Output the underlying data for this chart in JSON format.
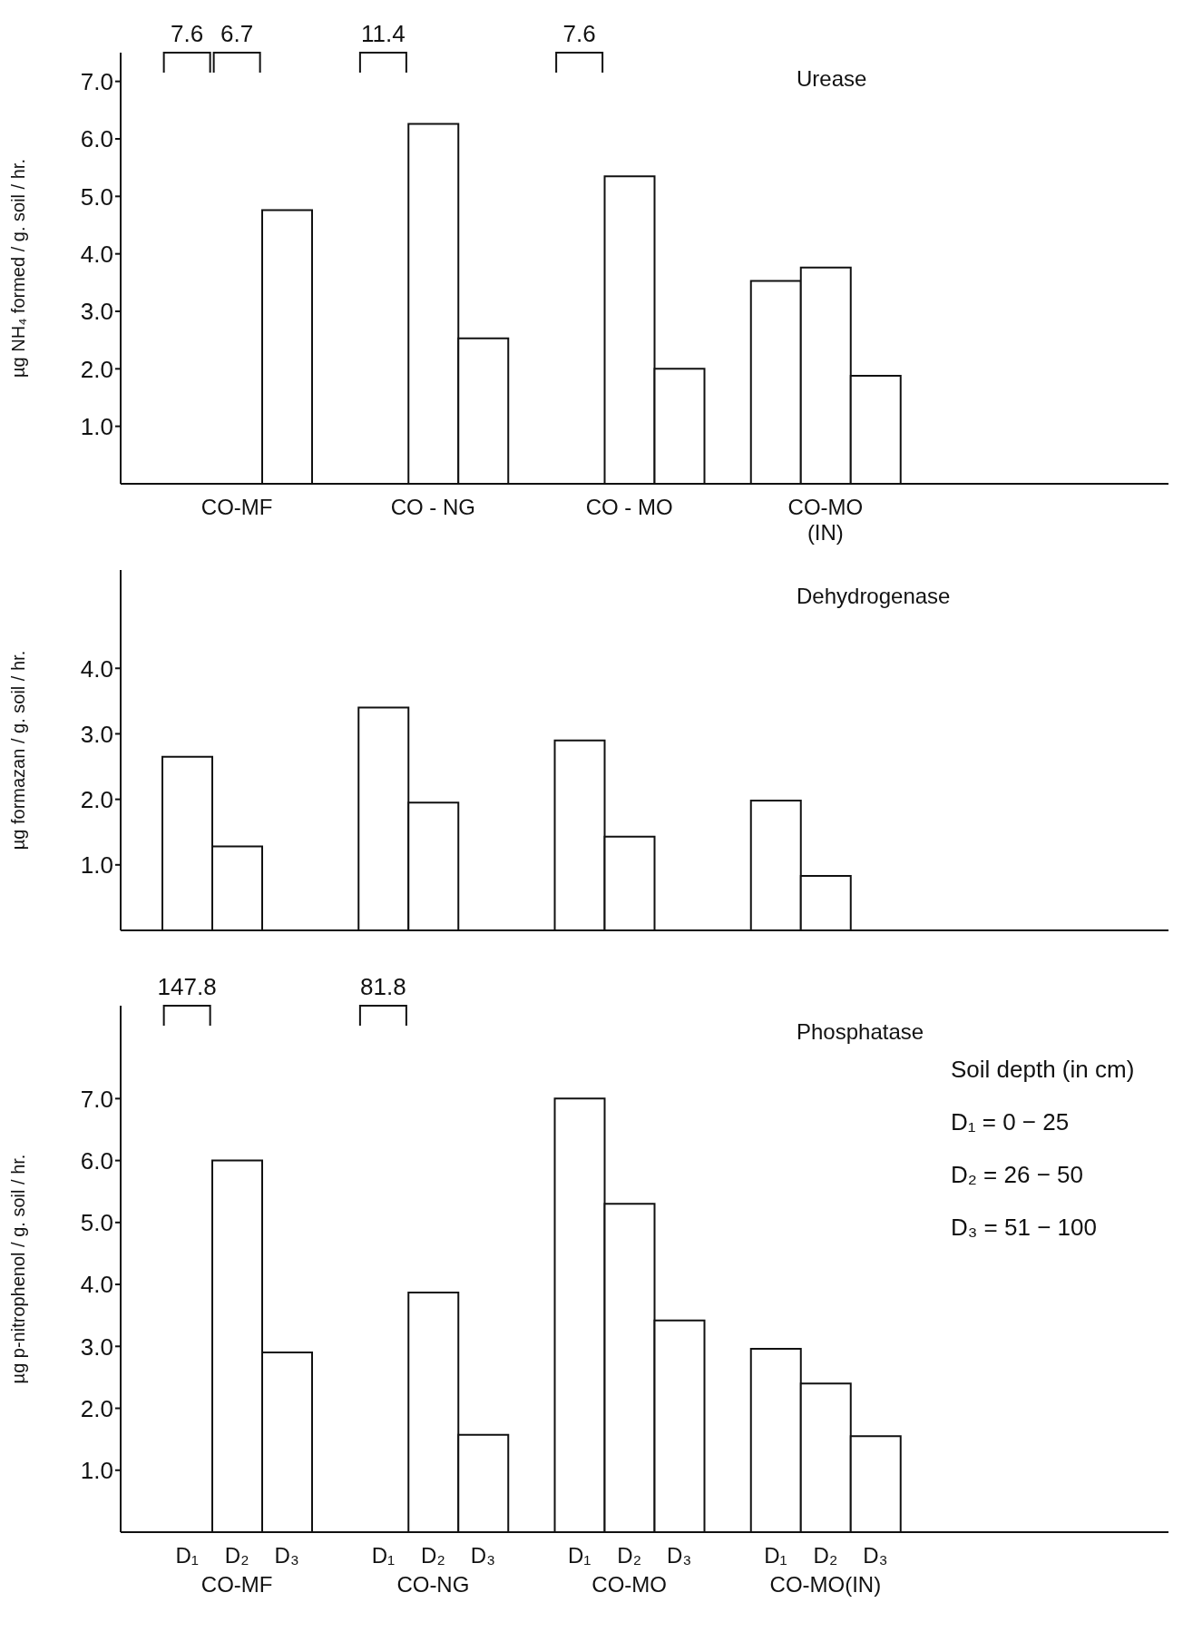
{
  "chart_data": [
    {
      "type": "bar",
      "title": "Urease",
      "ylabel": "µg NH₄ formed / g. soil / hr.",
      "categories": [
        "CO-MF",
        "CO - NG",
        "CO - MO",
        "CO-MO (IN)"
      ],
      "series": [
        {
          "color": "#ffffff",
          "values": [
            null,
            null,
            null,
            3.53
          ]
        },
        {
          "color": "#ffffff",
          "values": [
            null,
            6.26,
            5.35,
            3.76
          ]
        },
        {
          "color": "#ffffff",
          "values": [
            4.76,
            2.53,
            2.0,
            1.88
          ]
        }
      ],
      "ylim": [
        0,
        7.5
      ],
      "yticks": [
        {
          "value": 1,
          "label": "1.0"
        },
        {
          "value": 2,
          "label": "2.0"
        },
        {
          "value": 3,
          "label": "3.0"
        },
        {
          "value": 4,
          "label": "4.0"
        },
        {
          "value": 5,
          "label": "5.0"
        },
        {
          "value": 6,
          "label": "6.0"
        },
        {
          "value": 7,
          "label": "7.0"
        }
      ],
      "annotations": [
        "7.6",
        "6.7",
        "11.4",
        "7.6"
      ]
    },
    {
      "type": "bar",
      "title": "Dehydrogenase",
      "ylabel": "µg formazan / g. soil / hr.",
      "categories": [
        null,
        null,
        null,
        null
      ],
      "series": [
        {
          "color": "#ffffff",
          "values": [
            2.65,
            3.4,
            2.9,
            1.98
          ]
        },
        {
          "color": "#ffffff",
          "values": [
            1.28,
            1.95,
            1.43,
            0.83
          ]
        },
        {
          "color": "#ffffff",
          "values": [
            null,
            null,
            null,
            null
          ]
        }
      ],
      "ylim": [
        0,
        5.5
      ],
      "yticks": [
        {
          "value": 1,
          "label": "1.0"
        },
        {
          "value": 2,
          "label": "2.0"
        },
        {
          "value": 3,
          "label": "3.0"
        },
        {
          "value": 4,
          "label": "4.0"
        }
      ]
    },
    {
      "type": "bar",
      "title": "Phosphatase",
      "ylabel": "µg p-nitrophenol / g. soil / hr.",
      "categories": [
        "CO-MF",
        "CO-NG",
        "CO-MO",
        "CO-MO(IN)"
      ],
      "series": [
        {
          "name": "D₁",
          "color": "#ffffff",
          "values": [
            null,
            null,
            7.0,
            2.96
          ]
        },
        {
          "name": "D₂",
          "color": "#ffffff",
          "values": [
            6.0,
            3.87,
            5.3,
            2.4
          ]
        },
        {
          "name": "D₃",
          "color": "#ffffff",
          "values": [
            2.9,
            1.57,
            3.42,
            1.55
          ]
        }
      ],
      "ylim": [
        0,
        8.5
      ],
      "yticks": [
        {
          "value": 1,
          "label": "1.0"
        },
        {
          "value": 2,
          "label": "2.0"
        },
        {
          "value": 3,
          "label": "3.0"
        },
        {
          "value": 4,
          "label": "4.0"
        },
        {
          "value": 5,
          "label": "5.0"
        },
        {
          "value": 6,
          "label": "6.0"
        },
        {
          "value": 7,
          "label": "7.0"
        }
      ],
      "annotations": [
        "147.8",
        "81.8",
        "Soil depth (in cm)",
        "D₁ = 0 − 25",
        "D₂ = 26 − 50",
        "D₃ = 51 − 100"
      ]
    }
  ]
}
